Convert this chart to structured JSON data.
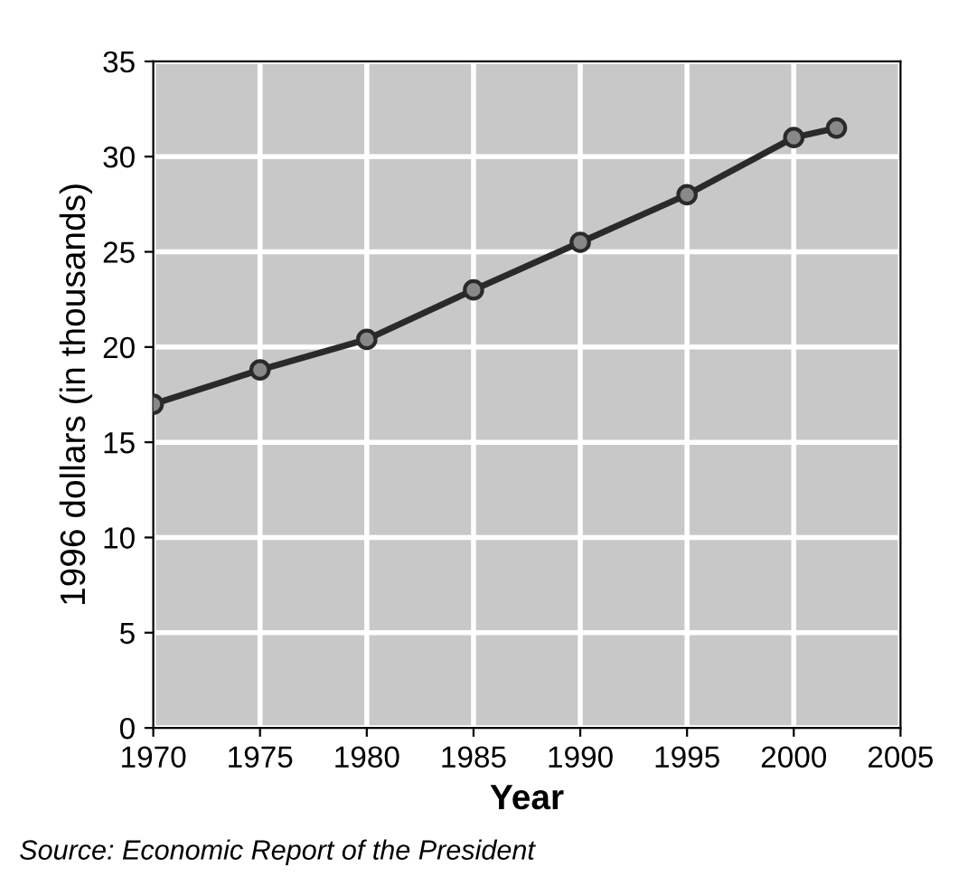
{
  "chart_data": {
    "type": "line",
    "xlabel": "Year",
    "ylabel": "1996 dollars (in thousands)",
    "x": [
      1970,
      1975,
      1980,
      1985,
      1990,
      1995,
      2000,
      2002
    ],
    "series": [
      {
        "color": "#2a2a2a",
        "values": [
          17,
          18.8,
          20.4,
          23,
          25.5,
          28,
          31,
          31.5
        ]
      }
    ],
    "xlim": [
      1970,
      2005
    ],
    "xticks": [
      1970,
      1975,
      1980,
      1985,
      1990,
      1995,
      2000,
      2005
    ],
    "ylim": [
      0,
      35
    ],
    "yticks": [
      0,
      5,
      10,
      15,
      20,
      25,
      30,
      35
    ],
    "grid": true,
    "marker": "circle",
    "line_style": "solid",
    "annotations": [
      "Source: Economic Report of the President"
    ]
  }
}
